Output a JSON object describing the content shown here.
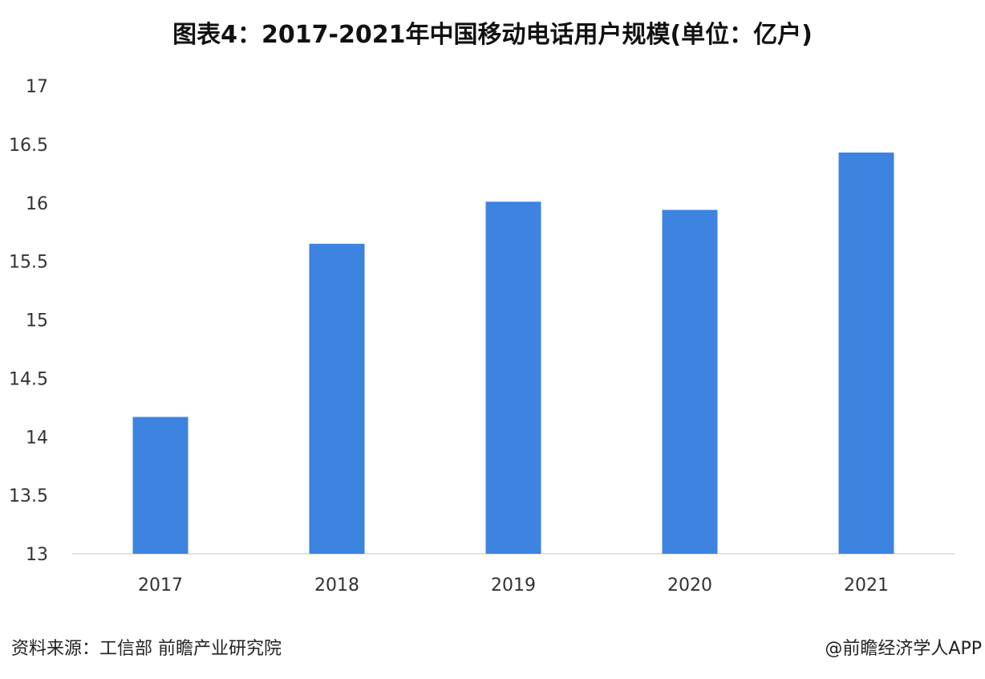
{
  "chart_data": {
    "type": "bar",
    "title": "图表4：2017-2021年中国移动电话用户规模(单位：亿户)",
    "categories": [
      "2017",
      "2018",
      "2019",
      "2020",
      "2021"
    ],
    "values": [
      14.17,
      15.65,
      16.01,
      15.94,
      16.43
    ],
    "ylim": [
      13,
      17
    ],
    "yticks": [
      "13",
      "13.5",
      "14",
      "14.5",
      "15",
      "15.5",
      "16",
      "16.5",
      "17"
    ],
    "xlabel": "",
    "ylabel": "",
    "grid": false,
    "bar_color": "#3D83E0",
    "axis_color": "#D9D9D9"
  },
  "footer": {
    "source": "资料来源：工信部 前瞻产业研究院",
    "credit": "@前瞻经济学人APP"
  }
}
